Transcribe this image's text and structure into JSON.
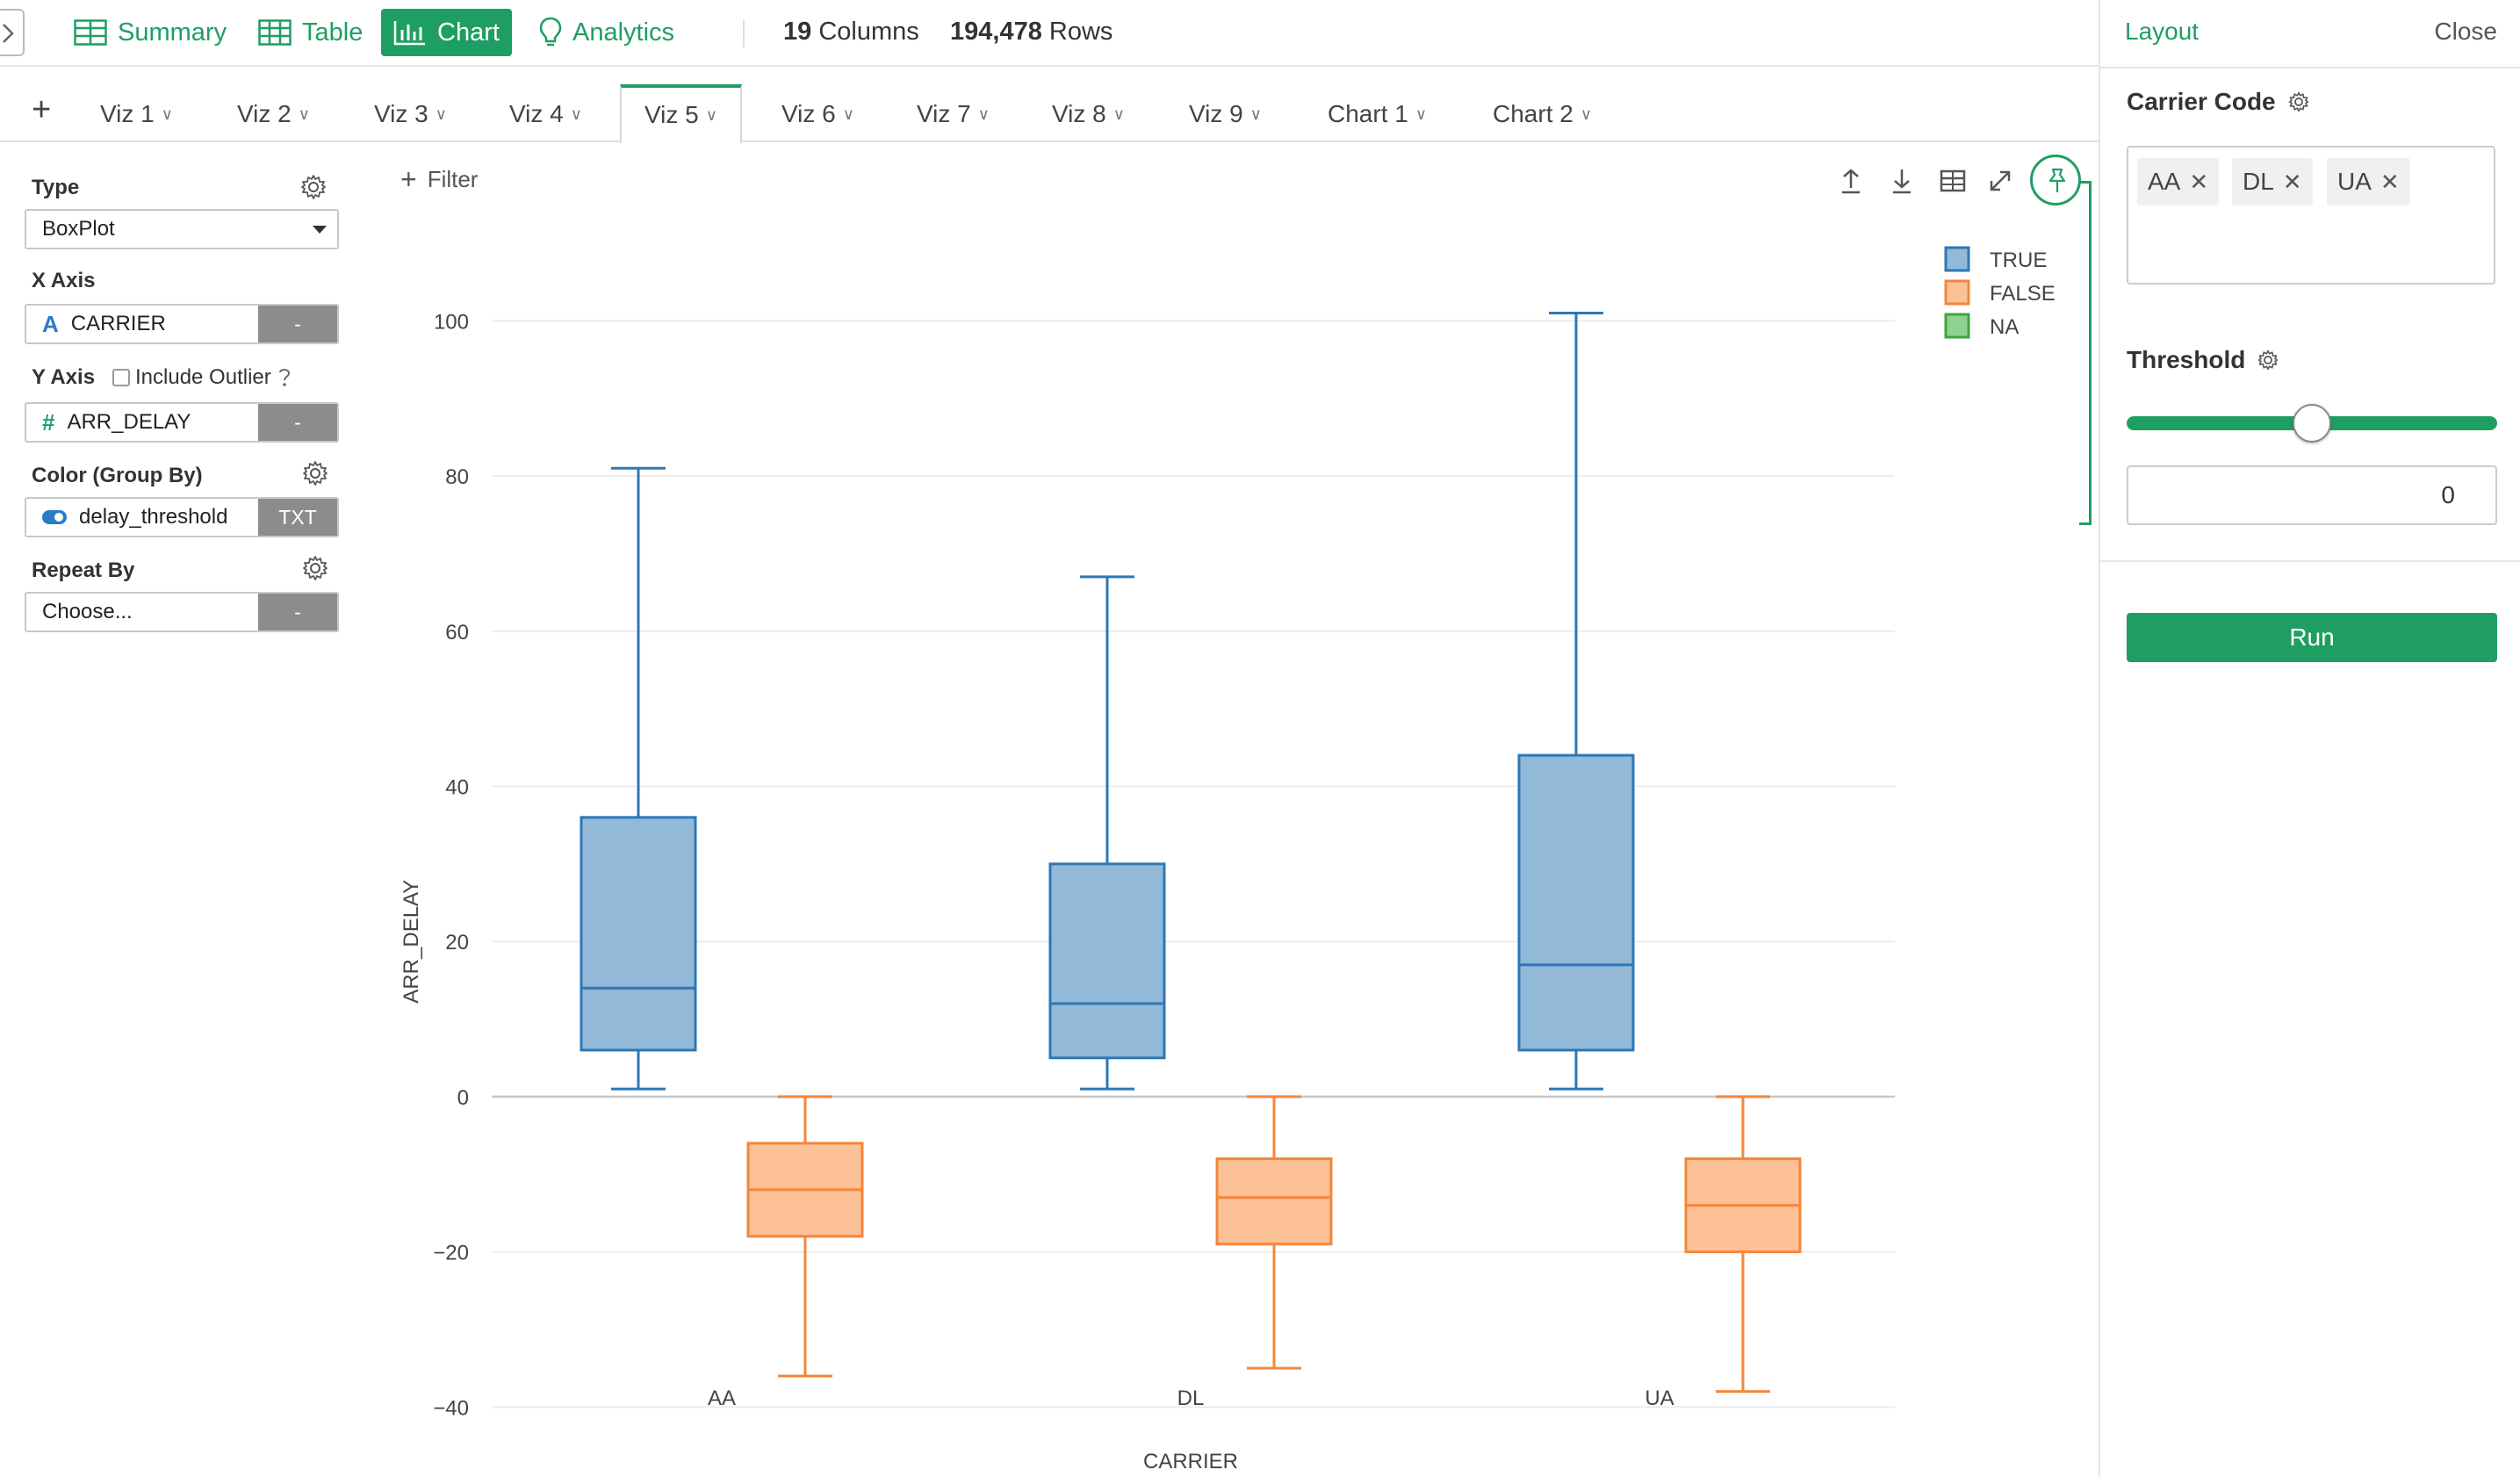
{
  "toolbar": {
    "summary_label": "Summary",
    "table_label": "Table",
    "chart_label": "Chart",
    "analytics_label": "Analytics",
    "columns_count": "19",
    "columns_word": "Columns",
    "rows_count": "194,478",
    "rows_word": "Rows"
  },
  "tabs": [
    "Viz 1",
    "Viz 2",
    "Viz 3",
    "Viz 4",
    "Viz 5",
    "Viz 6",
    "Viz 7",
    "Viz 8",
    "Viz 9",
    "Chart 1",
    "Chart 2"
  ],
  "active_tab": "Viz 5",
  "left_panel": {
    "type_label": "Type",
    "type_value": "BoxPlot",
    "xaxis_label": "X Axis",
    "xaxis_value": "CARRIER",
    "xaxis_tag": "-",
    "yaxis_label": "Y Axis",
    "include_outlier_label": "Include Outlier",
    "yaxis_value": "ARR_DELAY",
    "yaxis_tag": "-",
    "color_label": "Color (Group By)",
    "color_value": "delay_threshold",
    "color_tag": "TXT",
    "repeat_label": "Repeat By",
    "repeat_placeholder": "Choose...",
    "repeat_tag": "-"
  },
  "chart_toolbar": {
    "filter_label": "Filter"
  },
  "right_panel": {
    "layout_label": "Layout",
    "close_label": "Close",
    "carrier_code_label": "Carrier Code",
    "carrier_chips": [
      "AA",
      "DL",
      "UA"
    ],
    "threshold_label": "Threshold",
    "threshold_value": "0",
    "threshold_slider_fraction": 0.5,
    "run_label": "Run"
  },
  "colors": {
    "accent": "#1f9e63",
    "true_stroke": "#2e77b5",
    "true_fill": "#93b9d8",
    "false_stroke": "#f5863a",
    "false_fill": "#fcc196",
    "na_stroke": "#3ca63c",
    "na_fill": "#8fd18f"
  },
  "chart_data": {
    "type": "boxplot",
    "xlabel": "CARRIER",
    "ylabel": "ARR_DELAY",
    "categories": [
      "AA",
      "DL",
      "UA"
    ],
    "ylim": [
      -42,
      104
    ],
    "yticks": [
      -40,
      -20,
      0,
      20,
      40,
      60,
      80,
      100
    ],
    "ytick_labels": [
      "−40",
      "−20",
      "0",
      "20",
      "40",
      "60",
      "80",
      "100"
    ],
    "grid": true,
    "legend_position": "top-right",
    "series": [
      {
        "name": "TRUE",
        "boxes": [
          {
            "min": 1,
            "q1": 6,
            "median": 14,
            "q3": 36,
            "max": 81
          },
          {
            "min": 1,
            "q1": 5,
            "median": 12,
            "q3": 30,
            "max": 67
          },
          {
            "min": 1,
            "q1": 6,
            "median": 17,
            "q3": 44,
            "max": 101
          }
        ]
      },
      {
        "name": "FALSE",
        "boxes": [
          {
            "min": -36,
            "q1": -18,
            "median": -12,
            "q3": -6,
            "max": 0
          },
          {
            "min": -35,
            "q1": -19,
            "median": -13,
            "q3": -8,
            "max": 0
          },
          {
            "min": -38,
            "q1": -20,
            "median": -14,
            "q3": -8,
            "max": 0
          }
        ]
      },
      {
        "name": "NA",
        "boxes": []
      }
    ]
  }
}
